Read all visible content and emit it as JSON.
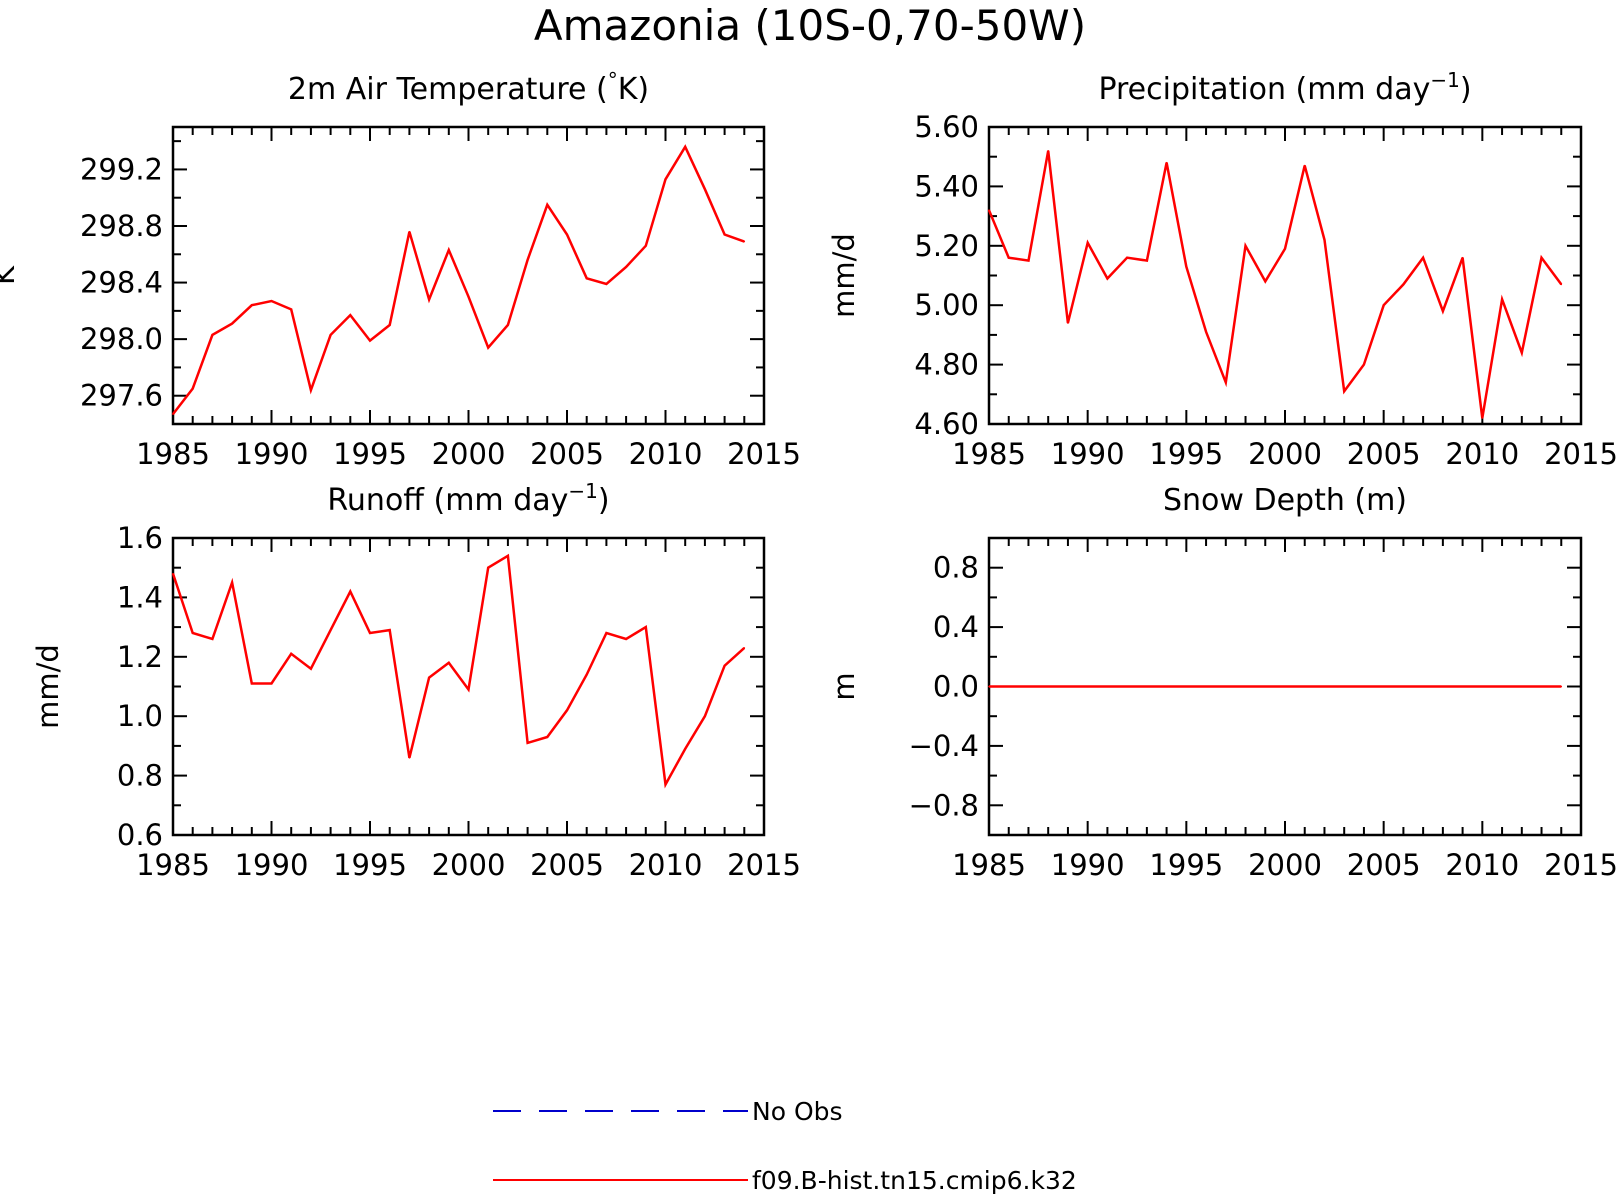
{
  "title": "Amazonia (10S-0,70-50W)",
  "colors": {
    "model": "#ff0000",
    "obs": "#0000cc",
    "axis": "#000000"
  },
  "legend": {
    "obs_label": "No Obs",
    "model_label": "f09.B-hist.tn15.cmip6.k32"
  },
  "chart_data": [
    {
      "type": "line",
      "title": "2m Air Temperature (°K)",
      "title_parts": [
        "2m Air Temperature (",
        "°",
        "K)"
      ],
      "xlabel": "",
      "ylabel": "K",
      "xlim": [
        1985,
        2015
      ],
      "ylim": [
        297.4,
        299.5
      ],
      "xticks": [
        1985,
        1990,
        1995,
        2000,
        2005,
        2010,
        2015
      ],
      "xtick_labels": [
        "1985",
        "1990",
        "1995",
        "2000",
        "2005",
        "2010",
        "2015"
      ],
      "yticks": [
        297.6,
        298.0,
        298.4,
        298.8,
        299.2
      ],
      "ytick_labels": [
        "297.6",
        "298.0",
        "298.4",
        "298.8",
        "299.2"
      ],
      "series": [
        {
          "name": "f09.B-hist.tn15.cmip6.k32",
          "x": [
            1985,
            1986,
            1987,
            1988,
            1989,
            1990,
            1991,
            1992,
            1993,
            1994,
            1995,
            1996,
            1997,
            1998,
            1999,
            2000,
            2001,
            2002,
            2003,
            2004,
            2005,
            2006,
            2007,
            2008,
            2009,
            2010,
            2011,
            2012,
            2013,
            2014
          ],
          "values": [
            297.47,
            297.65,
            298.03,
            298.11,
            298.24,
            298.27,
            298.21,
            297.64,
            298.03,
            298.17,
            297.99,
            298.1,
            298.76,
            298.28,
            298.63,
            298.3,
            297.94,
            298.1,
            298.56,
            298.95,
            298.74,
            298.43,
            298.39,
            298.51,
            298.66,
            299.13,
            299.36,
            299.06,
            298.74,
            298.69
          ]
        }
      ]
    },
    {
      "type": "line",
      "title": "Precipitation (mm day⁻¹)",
      "title_parts": [
        "Precipitation (mm day",
        "−1",
        ")"
      ],
      "xlabel": "",
      "ylabel": "mm/d",
      "xlim": [
        1985,
        2015
      ],
      "ylim": [
        4.6,
        5.6
      ],
      "xticks": [
        1985,
        1990,
        1995,
        2000,
        2005,
        2010,
        2015
      ],
      "xtick_labels": [
        "1985",
        "1990",
        "1995",
        "2000",
        "2005",
        "2010",
        "2015"
      ],
      "yticks": [
        4.6,
        4.8,
        5.0,
        5.2,
        5.4,
        5.6
      ],
      "ytick_labels": [
        "4.60",
        "4.80",
        "5.00",
        "5.20",
        "5.40",
        "5.60"
      ],
      "series": [
        {
          "name": "f09.B-hist.tn15.cmip6.k32",
          "x": [
            1985,
            1986,
            1987,
            1988,
            1989,
            1990,
            1991,
            1992,
            1993,
            1994,
            1995,
            1996,
            1997,
            1998,
            1999,
            2000,
            2001,
            2002,
            2003,
            2004,
            2005,
            2006,
            2007,
            2008,
            2009,
            2010,
            2011,
            2012,
            2013,
            2014
          ],
          "values": [
            5.32,
            5.16,
            5.15,
            5.52,
            4.94,
            5.21,
            5.09,
            5.16,
            5.15,
            5.48,
            5.13,
            4.91,
            4.74,
            5.2,
            5.08,
            5.19,
            5.47,
            5.22,
            4.71,
            4.8,
            5.0,
            5.07,
            5.16,
            4.98,
            5.16,
            4.62,
            5.02,
            4.84,
            5.16,
            5.07
          ]
        }
      ]
    },
    {
      "type": "line",
      "title": "Runoff (mm day⁻¹)",
      "title_parts": [
        "Runoff (mm day",
        "−1",
        ")"
      ],
      "xlabel": "",
      "ylabel": "mm/d",
      "xlim": [
        1985,
        2015
      ],
      "ylim": [
        0.6,
        1.6
      ],
      "xticks": [
        1985,
        1990,
        1995,
        2000,
        2005,
        2010,
        2015
      ],
      "xtick_labels": [
        "1985",
        "1990",
        "1995",
        "2000",
        "2005",
        "2010",
        "2015"
      ],
      "yticks": [
        0.6,
        0.8,
        1.0,
        1.2,
        1.4,
        1.6
      ],
      "ytick_labels": [
        "0.6",
        "0.8",
        "1.0",
        "1.2",
        "1.4",
        "1.6"
      ],
      "series": [
        {
          "name": "f09.B-hist.tn15.cmip6.k32",
          "x": [
            1985,
            1986,
            1987,
            1988,
            1989,
            1990,
            1991,
            1992,
            1993,
            1994,
            1995,
            1996,
            1997,
            1998,
            1999,
            2000,
            2001,
            2002,
            2003,
            2004,
            2005,
            2006,
            2007,
            2008,
            2009,
            2010,
            2011,
            2012,
            2013,
            2014
          ],
          "values": [
            1.48,
            1.28,
            1.26,
            1.45,
            1.11,
            1.11,
            1.21,
            1.16,
            1.29,
            1.42,
            1.28,
            1.29,
            0.86,
            1.13,
            1.18,
            1.09,
            1.5,
            1.54,
            0.91,
            0.93,
            1.02,
            1.14,
            1.28,
            1.26,
            1.3,
            0.77,
            0.89,
            1.0,
            1.17,
            1.23
          ]
        }
      ]
    },
    {
      "type": "line",
      "title": "Snow Depth (m)",
      "title_parts": [
        "Snow Depth (m)",
        "",
        ""
      ],
      "xlabel": "",
      "ylabel": "m",
      "xlim": [
        1985,
        2015
      ],
      "ylim": [
        -1.0,
        1.0
      ],
      "xticks": [
        1985,
        1990,
        1995,
        2000,
        2005,
        2010,
        2015
      ],
      "xtick_labels": [
        "1985",
        "1990",
        "1995",
        "2000",
        "2005",
        "2010",
        "2015"
      ],
      "yticks": [
        -0.8,
        -0.4,
        0.0,
        0.4,
        0.8
      ],
      "ytick_labels": [
        "−0.8",
        "−0.4",
        "0.0",
        "0.4",
        "0.8"
      ],
      "series": [
        {
          "name": "f09.B-hist.tn15.cmip6.k32",
          "x": [
            1985,
            1986,
            1987,
            1988,
            1989,
            1990,
            1991,
            1992,
            1993,
            1994,
            1995,
            1996,
            1997,
            1998,
            1999,
            2000,
            2001,
            2002,
            2003,
            2004,
            2005,
            2006,
            2007,
            2008,
            2009,
            2010,
            2011,
            2012,
            2013,
            2014
          ],
          "values": [
            0,
            0,
            0,
            0,
            0,
            0,
            0,
            0,
            0,
            0,
            0,
            0,
            0,
            0,
            0,
            0,
            0,
            0,
            0,
            0,
            0,
            0,
            0,
            0,
            0,
            0,
            0,
            0,
            0,
            0
          ]
        }
      ]
    }
  ]
}
